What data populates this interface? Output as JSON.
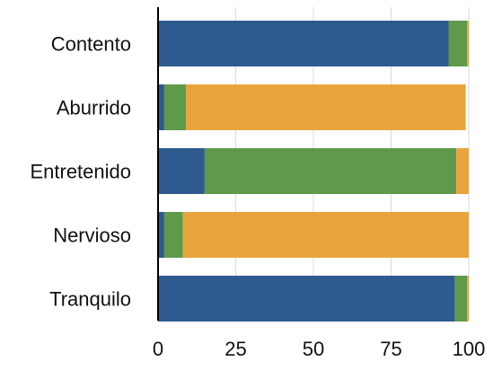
{
  "chart_data": {
    "type": "bar",
    "orientation": "horizontal",
    "stacked": true,
    "categories": [
      "Contento",
      "Aburrido",
      "Entretenido",
      "Nervioso",
      "Tranquilo"
    ],
    "series": [
      {
        "color": "#2f5a8f",
        "values": [
          93.5,
          2.0,
          15.0,
          2.0,
          95.5
        ]
      },
      {
        "color": "#5f9a4b",
        "values": [
          6.0,
          7.0,
          81.0,
          6.0,
          4.0
        ]
      },
      {
        "color": "#e8a43c",
        "values": [
          0.5,
          90.0,
          4.0,
          92.0,
          0.5
        ]
      }
    ],
    "x_ticks": [
      "0",
      "25",
      "50",
      "75",
      "100"
    ],
    "x_tick_values": [
      0,
      25,
      50,
      75,
      100
    ],
    "xlim": [
      0,
      100
    ],
    "grid": "vertical",
    "legend": "none",
    "title": "",
    "xlabel": "",
    "ylabel": ""
  }
}
